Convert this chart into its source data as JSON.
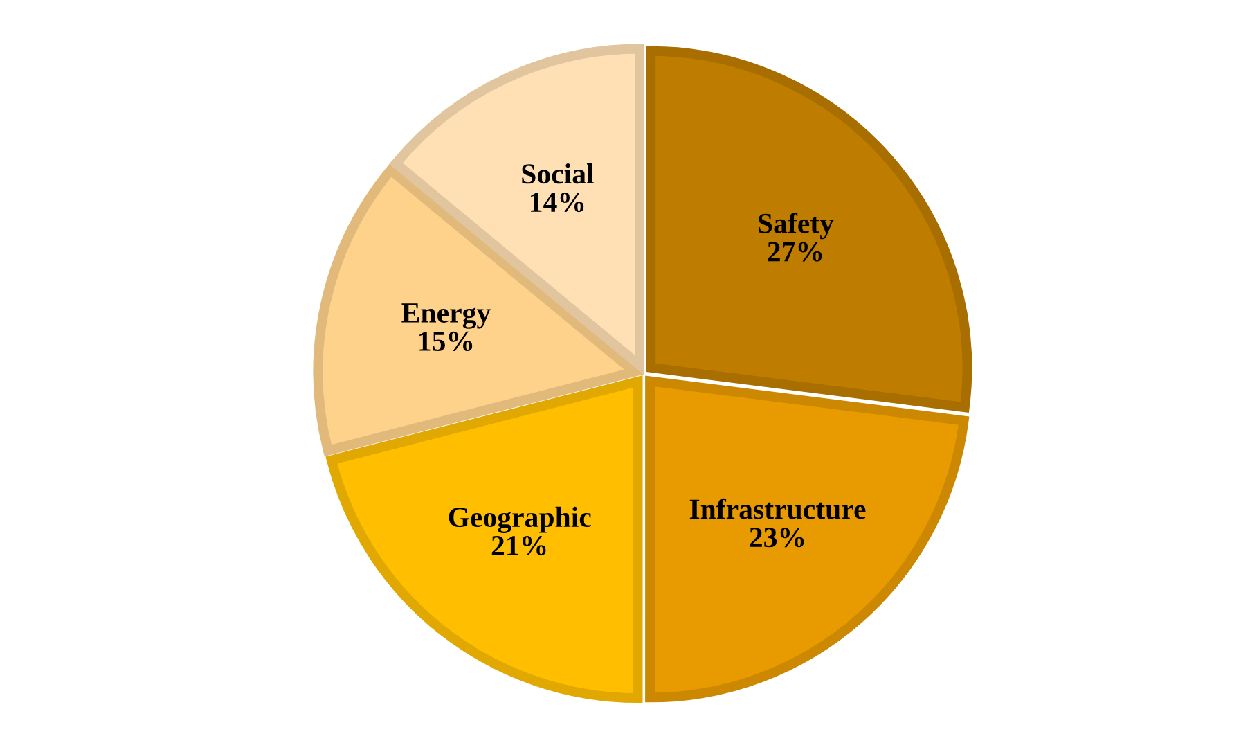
{
  "chart_data": {
    "type": "pie",
    "categories": [
      "Safety",
      "Infrastructure",
      "Geographic",
      "Energy",
      "Social"
    ],
    "values": [
      27,
      23,
      21,
      15,
      14
    ],
    "value_labels": [
      "27%",
      "23%",
      "21%",
      "15%",
      "14%"
    ],
    "colors": [
      "#bf7d00",
      "#e89b00",
      "#ffbf00",
      "#ffd28c",
      "#ffe0b4"
    ],
    "legend": false
  }
}
